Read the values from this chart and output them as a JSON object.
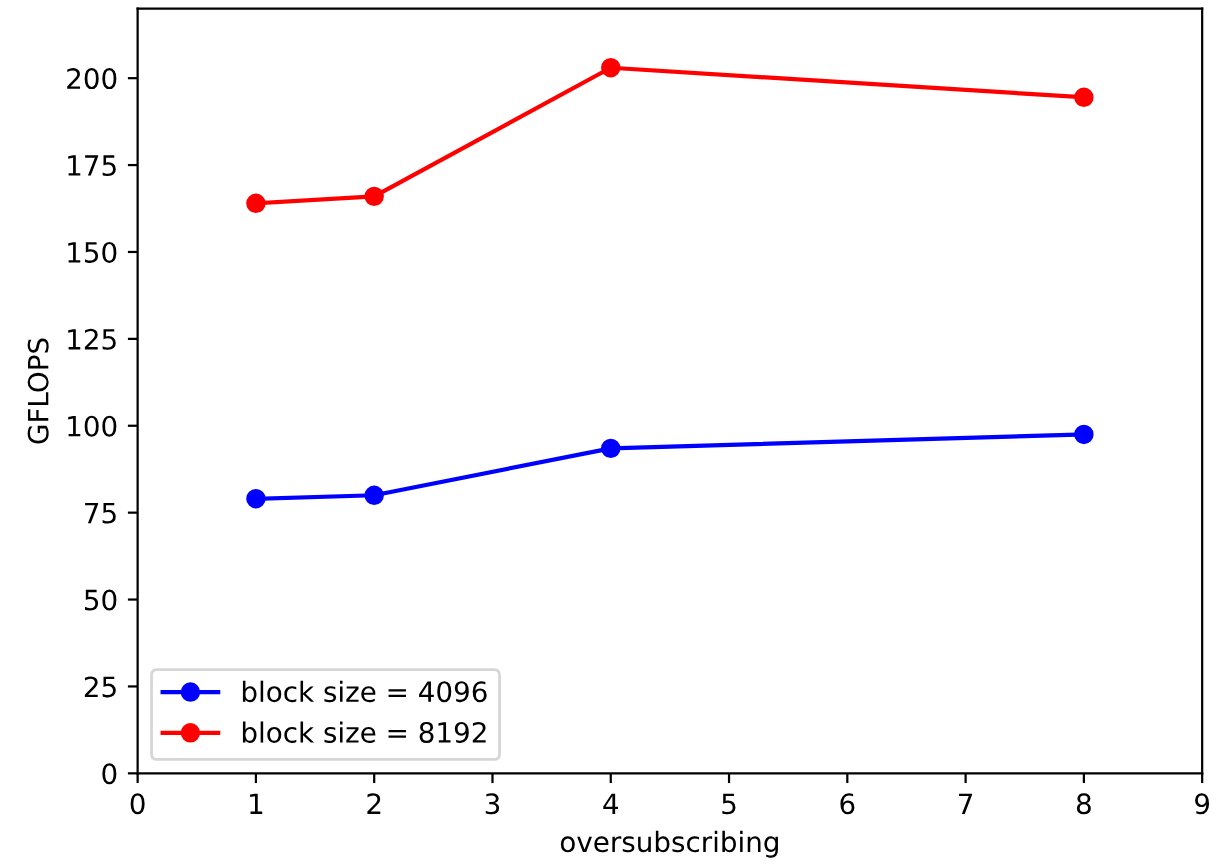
{
  "chart_data": {
    "type": "line",
    "xlabel": "oversubscribing",
    "ylabel": "GFLOPS",
    "x": [
      1,
      2,
      4,
      8
    ],
    "series": [
      {
        "name": "block size = 4096",
        "color": "#0000ff",
        "values": [
          79,
          80,
          93.5,
          97.5
        ]
      },
      {
        "name": "block size = 8192",
        "color": "#ff0000",
        "values": [
          164,
          166,
          203,
          194.5
        ]
      }
    ],
    "xlim": [
      0,
      9
    ],
    "xticks": [
      0,
      1,
      2,
      3,
      4,
      5,
      6,
      7,
      8,
      9
    ],
    "ylim": [
      0,
      220
    ],
    "yticks": [
      0,
      25,
      50,
      75,
      100,
      125,
      150,
      175,
      200
    ],
    "marker": "circle",
    "line_style": "solid",
    "legend": "bottom left",
    "grid": false
  }
}
